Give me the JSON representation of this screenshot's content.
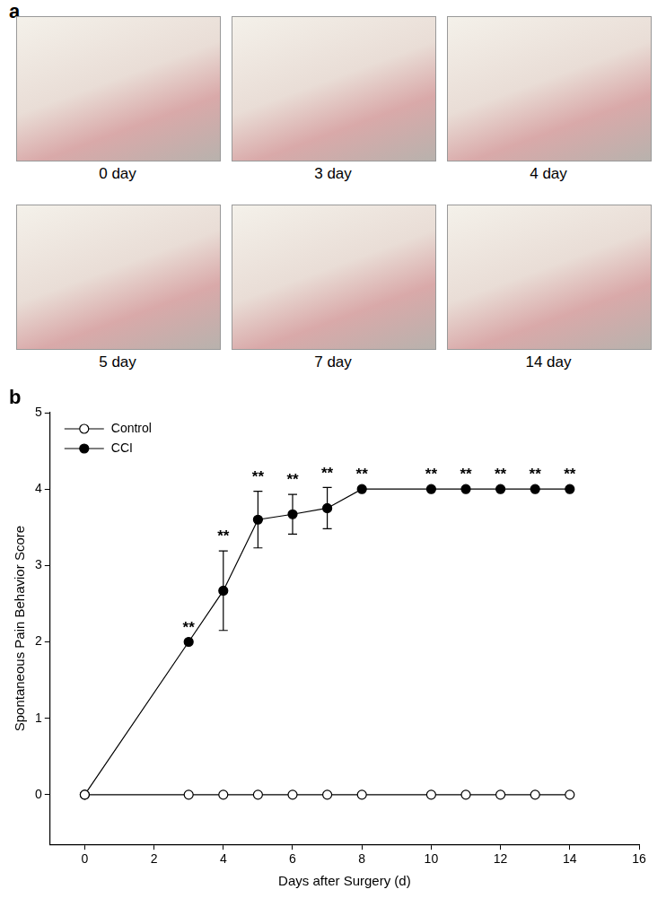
{
  "photo_panel": {
    "label": "a",
    "captions": [
      "0 day",
      "3 day",
      "4 day",
      "5 day",
      "7 day",
      "14 day"
    ]
  },
  "chart_data": {
    "type": "line",
    "panel_label": "b",
    "x_label": "Days after Surgery (d)",
    "y_label": "Spontaneous Pain Behavior Score",
    "x": [
      0,
      3,
      4,
      5,
      6,
      7,
      8,
      10,
      11,
      12,
      13,
      14
    ],
    "xlim": [
      -1,
      16
    ],
    "xticks": [
      0,
      2,
      4,
      6,
      8,
      10,
      12,
      14,
      16
    ],
    "ylim": [
      -0.65,
      5
    ],
    "yticks": [
      0,
      1,
      2,
      3,
      4,
      5
    ],
    "grid": false,
    "legend": "upper left",
    "series": [
      {
        "name": "Control",
        "color": "#000000",
        "marker": "open_circle",
        "line_style": "solid",
        "values": [
          0,
          0,
          0,
          0,
          0,
          0,
          0,
          0,
          0,
          0,
          0,
          0
        ]
      },
      {
        "name": "CCI",
        "color": "#000000",
        "marker": "circle",
        "line_style": "solid",
        "values": [
          0,
          2,
          2.67,
          3.6,
          3.67,
          3.75,
          4,
          4,
          4,
          4,
          4,
          4
        ],
        "errors": [
          0,
          0,
          0.52,
          0.37,
          0.26,
          0.27,
          0,
          0,
          0,
          0,
          0,
          0
        ],
        "annotations": [
          null,
          "**",
          "**",
          "**",
          "**",
          "**",
          "**",
          "**",
          "**",
          "**",
          "**",
          "**"
        ]
      }
    ]
  }
}
